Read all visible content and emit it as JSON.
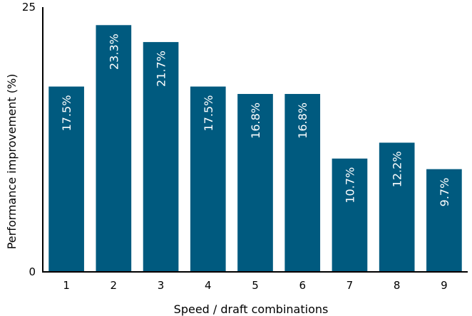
{
  "chart_data": {
    "type": "bar",
    "title": "",
    "xlabel": "Speed / draft combinations",
    "ylabel": "Performance improvement (%)",
    "categories": [
      "1",
      "2",
      "3",
      "4",
      "5",
      "6",
      "7",
      "8",
      "9"
    ],
    "values": [
      17.5,
      23.3,
      21.7,
      17.5,
      16.8,
      16.8,
      10.7,
      12.2,
      9.7
    ],
    "data_labels": [
      "17.5%",
      "23.3%",
      "21.7%",
      "17.5%",
      "16.8%",
      "16.8%",
      "10.7%",
      "12.2%",
      "9.7%"
    ],
    "ylim": [
      0,
      25
    ],
    "yticks": [
      "0",
      "25"
    ],
    "grid": false,
    "legend": "none",
    "bar_color": "#005a7f"
  }
}
